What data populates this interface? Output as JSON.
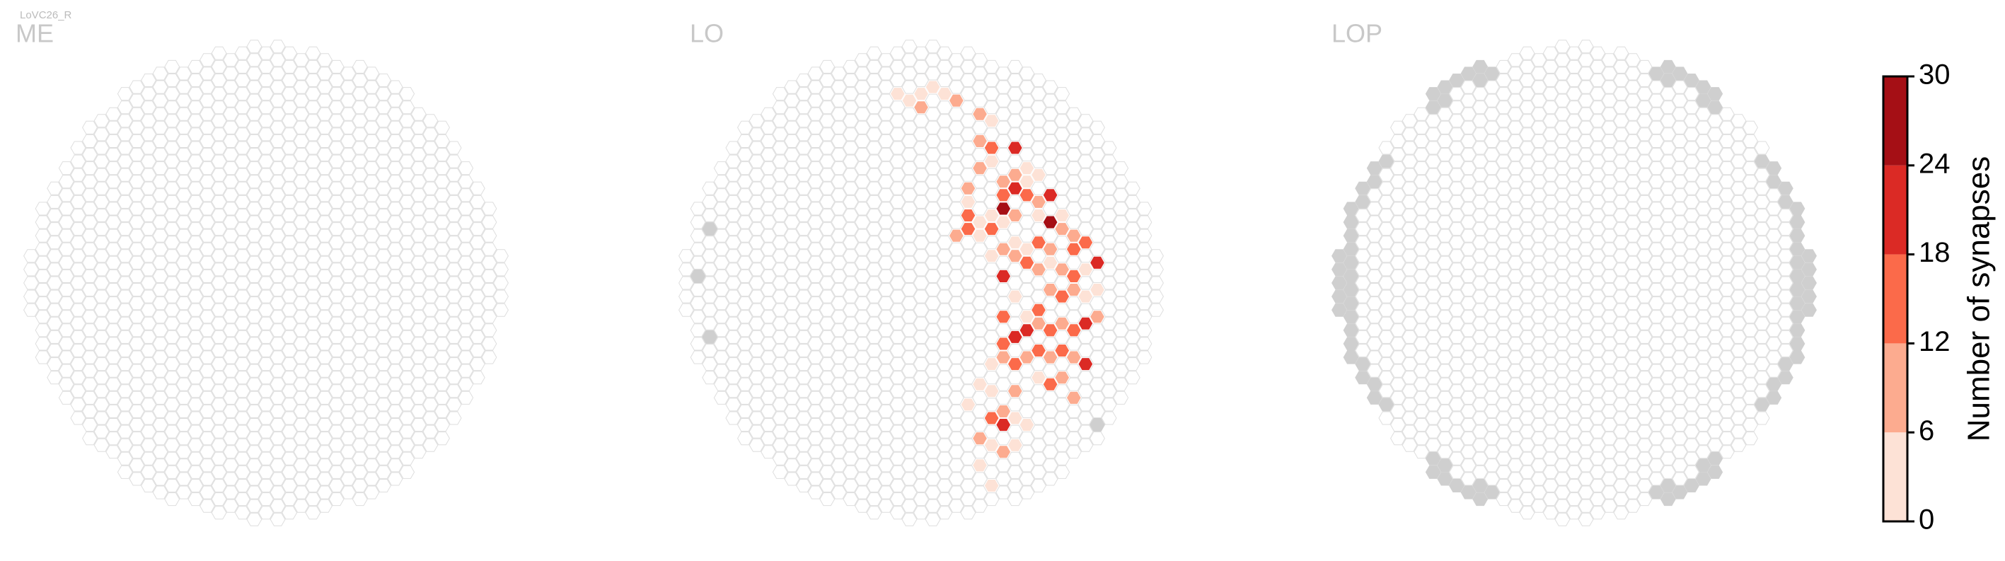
{
  "title": "LoVC26_R",
  "chart_data": {
    "type": "hexmap",
    "panels": [
      {
        "label": "ME",
        "cells": []
      },
      {
        "label": "LO",
        "cells": [
          {
            "col": -2,
            "row": -14,
            "value": 3
          },
          {
            "col": -1,
            "row": -14,
            "value": 2
          },
          {
            "col": 0,
            "row": -14,
            "value": 4
          },
          {
            "col": 1,
            "row": -15,
            "value": 5
          },
          {
            "col": 2,
            "row": -14,
            "value": 3
          },
          {
            "col": 3,
            "row": -14,
            "value": 8
          },
          {
            "col": 5,
            "row": -13,
            "value": 7
          },
          {
            "col": 0,
            "row": -13,
            "value": 9
          },
          {
            "col": 6,
            "row": -12,
            "value": 4
          },
          {
            "col": 5,
            "row": -11,
            "value": 10
          },
          {
            "col": 6,
            "row": -10,
            "value": 12
          },
          {
            "col": 5,
            "row": -9,
            "value": 8
          },
          {
            "col": 6,
            "row": -9,
            "value": 5
          },
          {
            "col": 7,
            "row": -8,
            "value": 6
          },
          {
            "col": 8,
            "row": -10,
            "value": 18
          },
          {
            "col": 9,
            "row": -9,
            "value": 4
          },
          {
            "col": 10,
            "row": -8,
            "value": 3
          },
          {
            "col": 9,
            "row": -8,
            "value": 5
          },
          {
            "col": 8,
            "row": -8,
            "value": 9
          },
          {
            "col": 7,
            "row": -7,
            "value": 15
          },
          {
            "col": 8,
            "row": -7,
            "value": 21
          },
          {
            "col": 7,
            "row": -6,
            "value": 27
          },
          {
            "col": 9,
            "row": -7,
            "value": 14
          },
          {
            "col": 11,
            "row": -7,
            "value": 22
          },
          {
            "col": 10,
            "row": -6,
            "value": 8
          },
          {
            "col": 4,
            "row": -7,
            "value": 7
          },
          {
            "col": 4,
            "row": -6,
            "value": 5
          },
          {
            "col": 4,
            "row": -5,
            "value": 14
          },
          {
            "col": 5,
            "row": -5,
            "value": 3
          },
          {
            "col": 6,
            "row": -5,
            "value": 5
          },
          {
            "col": 7,
            "row": -5,
            "value": 2
          },
          {
            "col": 5,
            "row": -4,
            "value": 4
          },
          {
            "col": 3,
            "row": -4,
            "value": 9
          },
          {
            "col": 4,
            "row": -4,
            "value": 17
          },
          {
            "col": 6,
            "row": -4,
            "value": 13
          },
          {
            "col": 8,
            "row": -5,
            "value": 6
          },
          {
            "col": 10,
            "row": -5,
            "value": 3
          },
          {
            "col": 11,
            "row": -5,
            "value": 27
          },
          {
            "col": 12,
            "row": -5,
            "value": 4
          },
          {
            "col": 13,
            "row": -4,
            "value": 7
          },
          {
            "col": 12,
            "row": -4,
            "value": 10
          },
          {
            "col": 13,
            "row": -3,
            "value": 12
          },
          {
            "col": 14,
            "row": -3,
            "value": 16
          },
          {
            "col": 15,
            "row": -2,
            "value": 18
          },
          {
            "col": 11,
            "row": -3,
            "value": 11
          },
          {
            "col": 10,
            "row": -3,
            "value": 14
          },
          {
            "col": 9,
            "row": -3,
            "value": 5
          },
          {
            "col": 8,
            "row": -3,
            "value": 3
          },
          {
            "col": 7,
            "row": -3,
            "value": 8
          },
          {
            "col": 6,
            "row": -2,
            "value": 4
          },
          {
            "col": 7,
            "row": -1,
            "value": 23
          },
          {
            "col": 8,
            "row": -2,
            "value": 10
          },
          {
            "col": 9,
            "row": -2,
            "value": 12
          },
          {
            "col": 10,
            "row": -1,
            "value": 6
          },
          {
            "col": 11,
            "row": -2,
            "value": 5
          },
          {
            "col": 12,
            "row": -1,
            "value": 9
          },
          {
            "col": 13,
            "row": -1,
            "value": 13
          },
          {
            "col": 14,
            "row": -1,
            "value": 5
          },
          {
            "col": 15,
            "row": 0,
            "value": 4
          },
          {
            "col": 11,
            "row": 0,
            "value": 10
          },
          {
            "col": 12,
            "row": 1,
            "value": 12
          },
          {
            "col": 13,
            "row": 0,
            "value": 7
          },
          {
            "col": 14,
            "row": 1,
            "value": 3
          },
          {
            "col": 7,
            "row": 2,
            "value": 12
          },
          {
            "col": 8,
            "row": 1,
            "value": 5
          },
          {
            "col": 9,
            "row": 2,
            "value": 2
          },
          {
            "col": 10,
            "row": 2,
            "value": 14
          },
          {
            "col": 11,
            "row": 3,
            "value": 16
          },
          {
            "col": 12,
            "row": 3,
            "value": 9
          },
          {
            "col": 13,
            "row": 3,
            "value": 12
          },
          {
            "col": 14,
            "row": 3,
            "value": 21
          },
          {
            "col": 15,
            "row": 2,
            "value": 6
          },
          {
            "col": 9,
            "row": 3,
            "value": 18
          },
          {
            "col": 10,
            "row": 3,
            "value": 6
          },
          {
            "col": 7,
            "row": 4,
            "value": 14
          },
          {
            "col": 8,
            "row": 4,
            "value": 22
          },
          {
            "col": 9,
            "row": 5,
            "value": 10
          },
          {
            "col": 10,
            "row": 5,
            "value": 15
          },
          {
            "col": 11,
            "row": 5,
            "value": 9
          },
          {
            "col": 12,
            "row": 5,
            "value": 13
          },
          {
            "col": 13,
            "row": 5,
            "value": 6
          },
          {
            "col": 14,
            "row": 6,
            "value": 22
          },
          {
            "col": 7,
            "row": 5,
            "value": 8
          },
          {
            "col": 6,
            "row": 6,
            "value": 3
          },
          {
            "col": 8,
            "row": 6,
            "value": 12
          },
          {
            "col": 10,
            "row": 7,
            "value": 5
          },
          {
            "col": 11,
            "row": 7,
            "value": 14
          },
          {
            "col": 12,
            "row": 7,
            "value": 11
          },
          {
            "col": 13,
            "row": 8,
            "value": 8
          },
          {
            "col": 5,
            "row": 7,
            "value": 5
          },
          {
            "col": 8,
            "row": 8,
            "value": 9
          },
          {
            "col": 7,
            "row": 9,
            "value": 10
          },
          {
            "col": 6,
            "row": 8,
            "value": 4
          },
          {
            "col": 4,
            "row": 9,
            "value": 3
          },
          {
            "col": 6,
            "row": 10,
            "value": 12
          },
          {
            "col": 7,
            "row": 10,
            "value": 18
          },
          {
            "col": 8,
            "row": 10,
            "value": 3
          },
          {
            "col": 9,
            "row": 10,
            "value": 5
          },
          {
            "col": 5,
            "row": 11,
            "value": 8
          },
          {
            "col": 6,
            "row": 12,
            "value": 4
          },
          {
            "col": 7,
            "row": 12,
            "value": 6
          },
          {
            "col": 8,
            "row": 12,
            "value": 2
          },
          {
            "col": 5,
            "row": 13,
            "value": 3
          },
          {
            "col": 6,
            "row": 15,
            "value": 4
          }
        ]
      },
      {
        "label": "LOP",
        "cells": []
      }
    ],
    "colorbar": {
      "label": "Number of synapses",
      "ticks": [
        0,
        6,
        12,
        18,
        24,
        30
      ],
      "colors": [
        "#fde2d6",
        "#fcab8f",
        "#fb6a4a",
        "#db2a25",
        "#a50f15"
      ]
    }
  }
}
